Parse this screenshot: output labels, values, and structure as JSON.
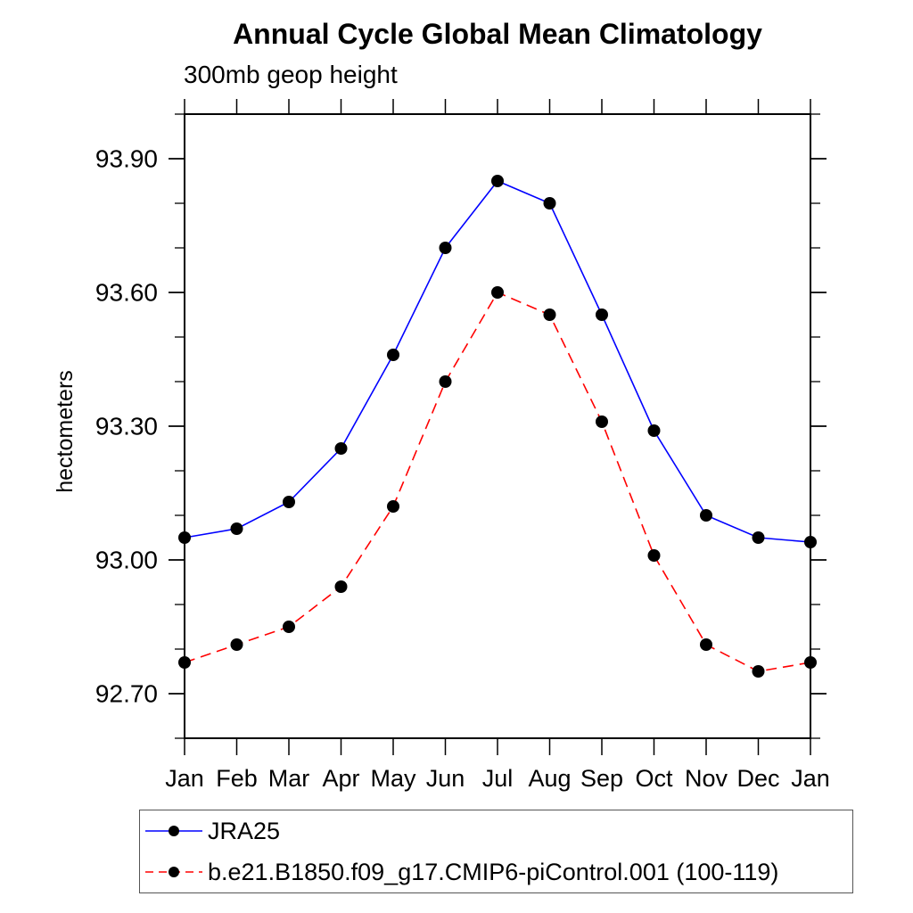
{
  "chart_data": {
    "type": "line",
    "title": "Annual Cycle Global Mean Climatology",
    "subtitle": "300mb geop height",
    "ylabel": "hectometers",
    "xlabel": "",
    "categories": [
      "Jan",
      "Feb",
      "Mar",
      "Apr",
      "May",
      "Jun",
      "Jul",
      "Aug",
      "Sep",
      "Oct",
      "Nov",
      "Dec",
      "Jan"
    ],
    "series": [
      {
        "name": "JRA25",
        "color": "#0000ff",
        "line_style": "solid",
        "marker": "filled-circle",
        "marker_color": "#000000",
        "values": [
          93.05,
          93.07,
          93.13,
          93.25,
          93.46,
          93.7,
          93.85,
          93.8,
          93.55,
          93.29,
          93.1,
          93.05,
          93.04
        ]
      },
      {
        "name": "b.e21.B1850.f09_g17.CMIP6-piControl.001 (100-119)",
        "color": "#ff0000",
        "line_style": "dashed",
        "marker": "filled-circle",
        "marker_color": "#000000",
        "values": [
          92.77,
          92.81,
          92.85,
          92.94,
          93.12,
          93.4,
          93.6,
          93.55,
          93.31,
          93.01,
          92.81,
          92.75,
          92.77
        ]
      }
    ],
    "ylim": [
      92.6,
      94.0
    ],
    "yticks_major": [
      92.7,
      93.0,
      93.3,
      93.6,
      93.9
    ],
    "ytick_minor_step": 0.1,
    "grid": false,
    "legend_position": "bottom-left",
    "axis_color": "#000000",
    "background_color": "#ffffff"
  }
}
